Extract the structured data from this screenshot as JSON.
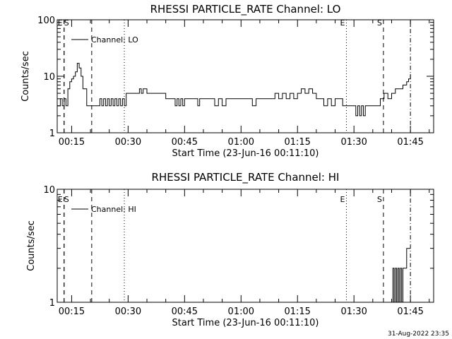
{
  "chart_data": [
    {
      "type": "line",
      "title": "RHESSI PARTICLE_RATE Channel: LO",
      "xlabel": "Start Time (23-Jun-16 00:11:10)",
      "ylabel": "Counts/sec",
      "y_scale": "log",
      "ylim": [
        1,
        100
      ],
      "xlim": [
        "00:11:10",
        "01:51:10"
      ],
      "yticks": [
        "1",
        "10",
        "100"
      ],
      "xticks": [
        "00:15",
        "00:30",
        "00:45",
        "01:00",
        "01:15",
        "01:30",
        "01:45"
      ],
      "legend": "Channel: LO",
      "legend_position": "top-left",
      "grid": false,
      "markers": [
        {
          "time": "00:13:00",
          "label": "E",
          "style": "dashed"
        },
        {
          "time": "00:13:00",
          "label": "S",
          "style": "dashed"
        },
        {
          "time": "00:20:20",
          "label": "",
          "style": "dashed"
        },
        {
          "time": "00:29:00",
          "label": "",
          "style": "dotted"
        },
        {
          "time": "01:28:00",
          "label": "E",
          "style": "dotted"
        },
        {
          "time": "01:37:50",
          "label": "S",
          "style": "dashed"
        },
        {
          "time": "01:45:00",
          "label": "",
          "style": "dashdot"
        }
      ],
      "series": [
        {
          "name": "Channel: LO",
          "x": [
            "00:11:10",
            "00:12:00",
            "00:12:30",
            "00:13:00",
            "00:13:30",
            "00:14:00",
            "00:14:30",
            "00:15:00",
            "00:15:30",
            "00:16:00",
            "00:16:30",
            "00:17:00",
            "00:17:30",
            "00:18:00",
            "00:19:00",
            "00:20:00",
            "00:21:00",
            "00:22:00",
            "00:22:30",
            "00:23:00",
            "00:23:30",
            "00:24:00",
            "00:24:30",
            "00:25:00",
            "00:25:30",
            "00:26:00",
            "00:26:30",
            "00:27:00",
            "00:27:30",
            "00:28:00",
            "00:28:30",
            "00:29:00",
            "00:29:30",
            "00:30:00",
            "00:31:00",
            "00:32:00",
            "00:32:30",
            "00:33:00",
            "00:33:30",
            "00:34:00",
            "00:35:00",
            "00:36:00",
            "00:37:00",
            "00:38:00",
            "00:39:00",
            "00:40:00",
            "00:41:00",
            "00:42:00",
            "00:42:30",
            "00:43:00",
            "00:43:30",
            "00:44:00",
            "00:44:30",
            "00:45:00",
            "00:46:00",
            "00:47:00",
            "00:48:00",
            "00:48:30",
            "00:49:00",
            "00:49:30",
            "00:50:00",
            "00:51:00",
            "00:52:00",
            "00:53:00",
            "00:54:00",
            "00:55:00",
            "00:56:00",
            "00:57:00",
            "00:58:00",
            "00:59:00",
            "01:00:00",
            "01:01:00",
            "01:02:00",
            "01:03:00",
            "01:04:00",
            "01:05:00",
            "01:06:00",
            "01:07:00",
            "01:08:00",
            "01:09:00",
            "01:10:00",
            "01:11:00",
            "01:12:00",
            "01:13:00",
            "01:14:00",
            "01:15:00",
            "01:16:00",
            "01:17:00",
            "01:18:00",
            "01:19:00",
            "01:20:00",
            "01:21:00",
            "01:22:00",
            "01:23:00",
            "01:24:00",
            "01:25:00",
            "01:26:00",
            "01:27:00",
            "01:28:00",
            "01:29:00",
            "01:30:00",
            "01:30:30",
            "01:31:00",
            "01:31:30",
            "01:32:00",
            "01:32:30",
            "01:33:00",
            "01:33:30",
            "01:34:00",
            "01:35:00",
            "01:36:00",
            "01:37:00",
            "01:38:00",
            "01:39:00",
            "01:40:00",
            "01:41:00",
            "01:42:00",
            "01:43:00",
            "01:44:00",
            "01:44:30",
            "01:45:00"
          ],
          "y": [
            3,
            4,
            3,
            4,
            3,
            6,
            8,
            9,
            10,
            12,
            17,
            14,
            10,
            6,
            3,
            3,
            3,
            3,
            4,
            3,
            4,
            3,
            4,
            3,
            4,
            3,
            4,
            3,
            4,
            3,
            4,
            3,
            5,
            5,
            5,
            5,
            5,
            6,
            5,
            6,
            5,
            5,
            5,
            5,
            5,
            4,
            4,
            4,
            3,
            4,
            3,
            4,
            3,
            4,
            4,
            4,
            4,
            3,
            4,
            4,
            4,
            4,
            4,
            3,
            4,
            3,
            4,
            4,
            4,
            4,
            4,
            4,
            4,
            3,
            4,
            4,
            4,
            4,
            4,
            5,
            4,
            5,
            4,
            5,
            4,
            5,
            6,
            5,
            6,
            5,
            4,
            4,
            3,
            4,
            3,
            4,
            4,
            3,
            3,
            3,
            3,
            2,
            3,
            2,
            3,
            2,
            3,
            3,
            3,
            3,
            3,
            4,
            5,
            4,
            5,
            6,
            6,
            7,
            8,
            9,
            11
          ]
        }
      ]
    },
    {
      "type": "line",
      "title": "RHESSI PARTICLE_RATE Channel: HI",
      "xlabel": "Start Time (23-Jun-16 00:11:10)",
      "ylabel": "Counts/sec",
      "y_scale": "log",
      "ylim": [
        1,
        10
      ],
      "xlim": [
        "00:11:10",
        "01:51:10"
      ],
      "yticks": [
        "1",
        "10"
      ],
      "xticks": [
        "00:15",
        "00:30",
        "00:45",
        "01:00",
        "01:15",
        "01:30",
        "01:45"
      ],
      "legend": "Channel: HI",
      "legend_position": "top-left",
      "grid": false,
      "markers": [
        {
          "time": "00:13:00",
          "label": "E",
          "style": "dashed"
        },
        {
          "time": "00:13:00",
          "label": "S",
          "style": "dashed"
        },
        {
          "time": "00:20:20",
          "label": "",
          "style": "dashed"
        },
        {
          "time": "00:29:00",
          "label": "",
          "style": "dotted"
        },
        {
          "time": "01:28:00",
          "label": "E",
          "style": "dotted"
        },
        {
          "time": "01:37:50",
          "label": "S",
          "style": "dashed"
        },
        {
          "time": "01:45:00",
          "label": "",
          "style": "dashdot"
        }
      ],
      "series": [
        {
          "name": "Channel: HI",
          "x": [
            "01:40:00",
            "01:40:20",
            "01:40:40",
            "01:41:00",
            "01:41:20",
            "01:41:40",
            "01:42:00",
            "01:42:20",
            "01:42:40",
            "01:43:00",
            "01:43:30",
            "01:44:00",
            "01:45:00"
          ],
          "y": [
            1,
            2,
            1,
            2,
            1,
            2,
            1,
            2,
            1,
            2,
            2,
            3,
            3
          ]
        }
      ]
    }
  ],
  "footer": {
    "timestamp": "31-Aug-2022 23:35"
  }
}
